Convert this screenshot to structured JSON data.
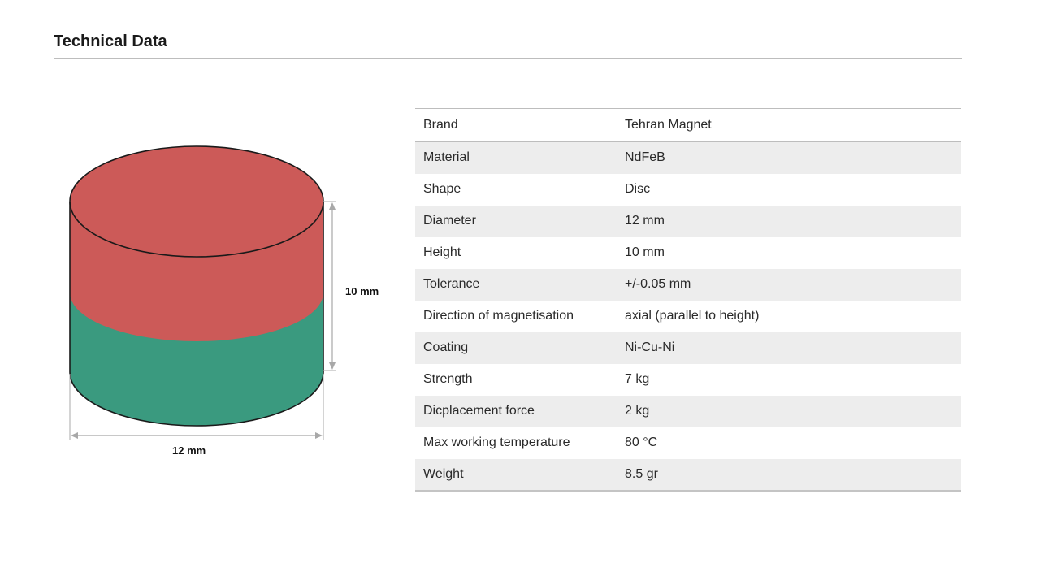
{
  "header": {
    "title": "Technical Data"
  },
  "figure": {
    "height_label": "10 mm",
    "diameter_label": "12 mm",
    "colors": {
      "north": "#cc5a58",
      "south": "#3a9a7f",
      "outline": "#1a1a1a",
      "dimension_line": "#a8a8a8"
    }
  },
  "specs": {
    "rows": [
      {
        "key": "Brand",
        "value": "Tehran Magnet"
      },
      {
        "key": "Material",
        "value": "NdFeB"
      },
      {
        "key": "Shape",
        "value": "Disc"
      },
      {
        "key": "Diameter",
        "value": "12 mm"
      },
      {
        "key": "Height",
        "value": "10 mm"
      },
      {
        "key": "Tolerance",
        "value": "+/-0.05 mm"
      },
      {
        "key": "Direction of magnetisation",
        "value": "axial (parallel to height)"
      },
      {
        "key": "Coating",
        "value": "Ni-Cu-Ni"
      },
      {
        "key": "Strength",
        "value": "7 kg"
      },
      {
        "key": "Dicplacement force",
        "value": "2 kg"
      },
      {
        "key": "Max working temperature",
        "value": "80 °C"
      },
      {
        "key": "Weight",
        "value": "8.5 gr"
      }
    ]
  }
}
